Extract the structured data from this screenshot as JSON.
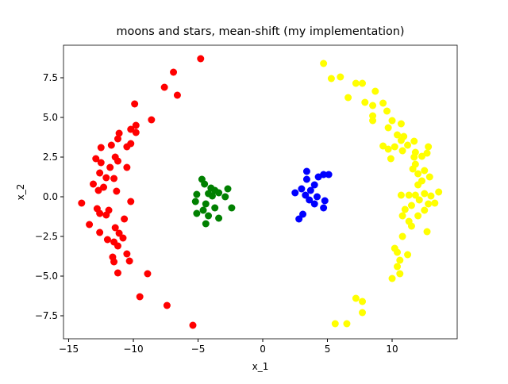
{
  "chart_data": {
    "type": "scatter",
    "title": "moons and stars, mean-shift (my implementation)",
    "xlabel": "x_1",
    "ylabel": "x_2",
    "xlim": [
      -15.4,
      15.03
    ],
    "ylim": [
      -8.95,
      9.55
    ],
    "xticks": [
      {
        "value": -15,
        "label": "−15"
      },
      {
        "value": -10,
        "label": "−10"
      },
      {
        "value": -5,
        "label": "−5"
      },
      0,
      5,
      10
    ],
    "yticks": [
      {
        "value": -7.5,
        "label": "−7.5"
      },
      {
        "value": -5,
        "label": "−5.0"
      },
      {
        "value": -2.5,
        "label": "−2.5"
      },
      {
        "value": 0,
        "label": "0.0"
      },
      2.5,
      {
        "value": 5,
        "label": "5.0"
      },
      7.5
    ],
    "series": [
      {
        "color": "#ff0000",
        "x": [
          -4.8,
          -6.9,
          -7.6,
          -6.6,
          -9.9,
          -8.6,
          -9.8,
          -10.2,
          -9.8,
          -11.1,
          -11.2,
          -10.5,
          -11.7,
          -12.5,
          -10.2,
          -12.9,
          -11.4,
          -11.2,
          -12.5,
          -11.8,
          -10.5,
          -12.6,
          -12.1,
          -13.1,
          -11.5,
          -12.7,
          -12.3,
          -11.3,
          -14.0,
          -10.2,
          -12.8,
          -12.6,
          -12.1,
          -11.9,
          -10.7,
          -13.4,
          -11.4,
          -11.1,
          -12.6,
          -10.8,
          -12.0,
          -11.5,
          -11.2,
          -10.5,
          -11.6,
          -10.3,
          -11.5,
          -11.2,
          -8.9,
          -9.5,
          -7.4,
          -5.4
        ],
        "values": [
          8.7,
          7.85,
          6.9,
          6.4,
          5.85,
          4.85,
          4.5,
          4.25,
          4.05,
          4.0,
          3.65,
          3.15,
          3.25,
          3.1,
          3.35,
          2.4,
          2.5,
          2.25,
          2.15,
          1.85,
          1.85,
          1.5,
          1.2,
          0.8,
          1.15,
          0.4,
          0.6,
          0.35,
          -0.4,
          -0.3,
          -0.75,
          -1.05,
          -1.15,
          -0.85,
          -1.4,
          -1.75,
          -1.95,
          -2.3,
          -2.25,
          -2.6,
          -2.7,
          -2.85,
          -3.1,
          -3.6,
          -3.8,
          -4.05,
          -4.1,
          -4.8,
          -4.85,
          -6.3,
          -6.85,
          -8.1
        ]
      },
      {
        "color": "#008000",
        "x": [
          -4.7,
          -4.5,
          -4.0,
          -3.7,
          -2.7,
          -3.4,
          -4.2,
          -5.1,
          -2.9,
          -3.9,
          -5.2,
          -4.4,
          -2.4,
          -3.7,
          -4.6,
          -5.1,
          -4.2,
          -3.4,
          -4.4
        ],
        "values": [
          1.1,
          0.8,
          0.55,
          0.4,
          0.5,
          0.25,
          0.2,
          0.15,
          0,
          0.05,
          -0.3,
          -0.45,
          -0.7,
          -0.7,
          -0.85,
          -1.05,
          -1.2,
          -1.35,
          -1.7
        ]
      },
      {
        "color": "#0000ff",
        "x": [
          3.4,
          5.1,
          4.3,
          4.7,
          3.4,
          4.0,
          3.0,
          3.7,
          2.5,
          3.3,
          4.2,
          4.8,
          3.6,
          4.0,
          4.7,
          3.1,
          2.8
        ],
        "values": [
          1.6,
          1.4,
          1.25,
          1.4,
          1.1,
          0.75,
          0.5,
          0.4,
          0.25,
          0.1,
          0,
          -0.25,
          -0.2,
          -0.45,
          -0.7,
          -1.1,
          -1.4
        ]
      },
      {
        "color": "#ffff00",
        "x": [
          4.7,
          5.3,
          6.0,
          6.6,
          7.2,
          7.7,
          8.7,
          7.9,
          8.5,
          9.3,
          8.5,
          9.6,
          8.5,
          10.0,
          9.7,
          10.7,
          10.4,
          10.9,
          10.7,
          11.7,
          11.2,
          9.3,
          9.7,
          10.2,
          12.8,
          10.8,
          11.8,
          12.7,
          9.9,
          11.7,
          12.3,
          11.8,
          11.6,
          12.5,
          12.0,
          12.9,
          12.3,
          12.0,
          13.6,
          10.7,
          11.3,
          11.8,
          12.5,
          13.0,
          12.1,
          13.3,
          12.8,
          11.5,
          11.0,
          12.5,
          10.8,
          12.0,
          11.3,
          11.5,
          12.7,
          10.8,
          10.2,
          10.4,
          11.2,
          10.6,
          10.4,
          10.6,
          10.0,
          7.2,
          7.7,
          7.7,
          5.6,
          6.5
        ],
        "values": [
          8.4,
          7.45,
          7.55,
          6.25,
          7.15,
          7.15,
          6.65,
          5.95,
          5.75,
          5.9,
          5.1,
          5.4,
          4.8,
          4.8,
          4.35,
          4.6,
          3.9,
          3.8,
          3.55,
          3.5,
          3.25,
          3.2,
          3.0,
          3.15,
          3.15,
          2.9,
          2.8,
          2.75,
          2.4,
          2.5,
          2.55,
          2.05,
          1.75,
          1.65,
          1.45,
          1.25,
          1.0,
          0.75,
          0.3,
          0.1,
          0.1,
          0.1,
          0.2,
          0.05,
          -0.2,
          -0.4,
          -0.45,
          -0.55,
          -0.8,
          -0.85,
          -1.2,
          -1.2,
          -1.55,
          -1.85,
          -2.2,
          -2.5,
          -3.25,
          -3.5,
          -3.65,
          -4.0,
          -4.4,
          -4.85,
          -5.15,
          -6.4,
          -6.6,
          -7.3,
          -8.0,
          -8.0
        ]
      }
    ]
  }
}
